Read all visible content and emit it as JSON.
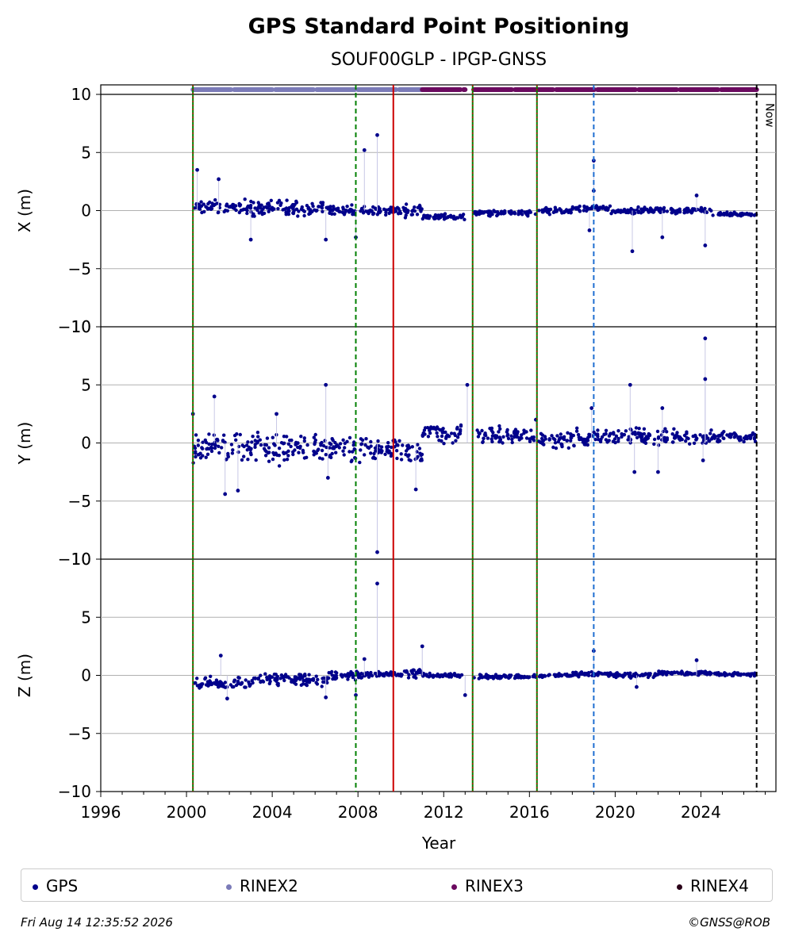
{
  "chart_data": {
    "type": "scatter",
    "title": "GPS Standard Point Positioning",
    "subtitle": "SOUF00GLP - IPGP-GNSS",
    "xlabel": "Year",
    "xlim": [
      1996,
      2027.5
    ],
    "x_ticks": [
      "1996",
      "2000",
      "2004",
      "2008",
      "2012",
      "2016",
      "2020",
      "2024"
    ],
    "grid": "horizontal",
    "legend_position": "bottom",
    "panels": [
      {
        "ylabel": "X (m)",
        "ylim": [
          -10,
          10
        ],
        "y_ticks": [
          "10",
          "5",
          "0",
          "−5",
          "−10"
        ],
        "band_halfwidth": [
          0.9,
          1.0,
          0.6,
          0.5,
          0.8,
          0.4,
          0.35,
          0.4,
          0.35,
          0.45,
          0.35,
          0.2
        ],
        "band_center": [
          0.3,
          0.2,
          0.0,
          0.0,
          0.1,
          -0.5,
          -0.2,
          0.0,
          0.2,
          0.0,
          0.0,
          -0.3
        ],
        "outliers": [
          [
            2000.5,
            3.5
          ],
          [
            2001.5,
            2.7
          ],
          [
            2003.0,
            -2.5
          ],
          [
            2006.5,
            -2.5
          ],
          [
            2007.9,
            -2.3
          ],
          [
            2008.3,
            5.2
          ],
          [
            2008.9,
            6.5
          ],
          [
            2019.0,
            4.3
          ],
          [
            2018.8,
            -1.7
          ],
          [
            2020.8,
            -3.5
          ],
          [
            2022.2,
            -2.3
          ],
          [
            2024.2,
            -3.0
          ],
          [
            2023.8,
            1.3
          ],
          [
            2019.0,
            1.7
          ]
        ]
      },
      {
        "ylabel": "Y (m)",
        "ylim": [
          -10,
          10
        ],
        "y_ticks": [
          "10",
          "5",
          "0",
          "−5",
          "−10"
        ],
        "band_halfwidth": [
          2.0,
          2.0,
          1.6,
          1.5,
          1.5,
          1.2,
          1.0,
          1.0,
          1.0,
          1.0,
          1.0,
          0.6
        ],
        "band_center": [
          -0.5,
          -0.5,
          -0.5,
          -0.5,
          -0.8,
          0.8,
          0.6,
          0.3,
          0.4,
          0.6,
          0.5,
          0.5
        ],
        "outliers": [
          [
            2000.3,
            2.5
          ],
          [
            2001.3,
            4.0
          ],
          [
            2001.8,
            -4.4
          ],
          [
            2002.4,
            -4.1
          ],
          [
            2004.2,
            2.5
          ],
          [
            2006.5,
            5.0
          ],
          [
            2006.6,
            -3.0
          ],
          [
            2008.9,
            -9.4
          ],
          [
            2010.7,
            -4.0
          ],
          [
            2013.1,
            5.0
          ],
          [
            2016.3,
            2.0
          ],
          [
            2018.9,
            3.0
          ],
          [
            2020.7,
            5.0
          ],
          [
            2020.9,
            -2.5
          ],
          [
            2022.2,
            3.0
          ],
          [
            2022.0,
            -2.5
          ],
          [
            2024.2,
            9.0
          ],
          [
            2024.2,
            5.5
          ],
          [
            2024.1,
            -1.5
          ]
        ]
      },
      {
        "ylabel": "Z (m)",
        "ylim": [
          -10,
          10
        ],
        "y_ticks": [
          "10",
          "5",
          "0",
          "−5",
          "−10"
        ],
        "band_halfwidth": [
          0.8,
          0.7,
          0.5,
          0.4,
          0.5,
          0.3,
          0.25,
          0.2,
          0.25,
          0.3,
          0.25,
          0.2
        ],
        "band_center": [
          -0.7,
          -0.4,
          0.0,
          0.1,
          0.2,
          0.0,
          -0.1,
          0.0,
          0.1,
          0.0,
          0.2,
          0.1
        ],
        "outliers": [
          [
            2001.6,
            1.7
          ],
          [
            2001.9,
            -2.0
          ],
          [
            2006.5,
            -1.9
          ],
          [
            2007.9,
            -1.7
          ],
          [
            2008.3,
            1.4
          ],
          [
            2008.9,
            7.9
          ],
          [
            2011.0,
            2.5
          ],
          [
            2013.0,
            -1.7
          ],
          [
            2019.0,
            2.1
          ],
          [
            2021.0,
            -1.0
          ],
          [
            2023.8,
            1.3
          ]
        ]
      }
    ],
    "segments": [
      [
        2000.3,
        2003.0
      ],
      [
        2003.0,
        2006.6
      ],
      [
        2006.6,
        2008.3
      ],
      [
        2008.3,
        2010.0
      ],
      [
        2010.0,
        2011.0
      ],
      [
        2011.0,
        2013.0
      ],
      [
        2013.4,
        2016.3
      ],
      [
        2016.4,
        2018.0
      ],
      [
        2018.0,
        2019.8
      ],
      [
        2019.8,
        2022.0
      ],
      [
        2022.0,
        2024.5
      ],
      [
        2024.5,
        2026.6
      ]
    ],
    "rinex_bars": [
      {
        "series": "RINEX2",
        "start": 2000.3,
        "end": 2011.0
      },
      {
        "series": "RINEX3",
        "start": 2011.0,
        "end": 2013.0
      },
      {
        "series": "RINEX3",
        "start": 2013.4,
        "end": 2026.6
      }
    ],
    "vlines": [
      {
        "x": 2000.3,
        "color": "#008000",
        "style": "solid",
        "overlay_color": "#cc0000",
        "overlay_style": "dotted"
      },
      {
        "x": 2007.9,
        "color": "#008000",
        "style": "dashed"
      },
      {
        "x": 2009.65,
        "color": "#cc0000",
        "style": "solid"
      },
      {
        "x": 2013.35,
        "color": "#008000",
        "style": "solid",
        "overlay_color": "#cc0000",
        "overlay_style": "dotted"
      },
      {
        "x": 2016.35,
        "color": "#008000",
        "style": "solid",
        "overlay_color": "#cc0000",
        "overlay_style": "dotted"
      },
      {
        "x": 2019.0,
        "color": "#1f6fd1",
        "style": "dashed"
      },
      {
        "x": 2026.6,
        "color": "#000000",
        "style": "dashed"
      }
    ],
    "now_label": "Now",
    "series": [
      {
        "name": "GPS",
        "color": "#00008b"
      },
      {
        "name": "RINEX2",
        "color": "#7b7bb8"
      },
      {
        "name": "RINEX3",
        "color": "#6b0a5f"
      },
      {
        "name": "RINEX4",
        "color": "#2a0018"
      }
    ]
  },
  "footer": {
    "timestamp": "Fri Aug 14 12:35:52 2026",
    "credit": "©GNSS@ROB"
  }
}
